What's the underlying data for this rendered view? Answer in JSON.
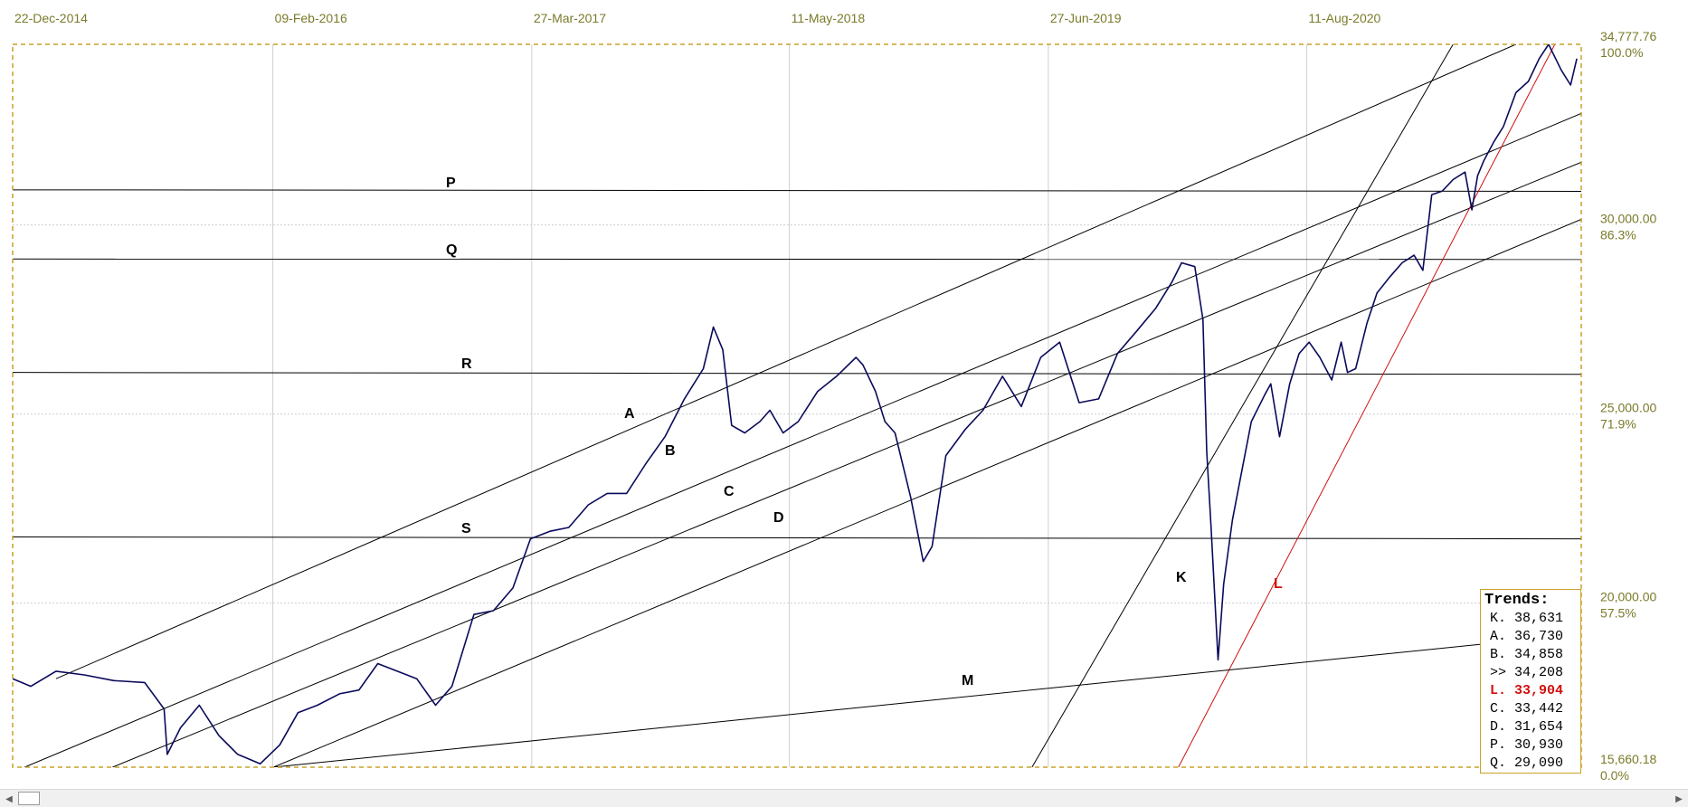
{
  "chart_data": {
    "type": "line",
    "title": "",
    "x_tick_labels": [
      "22-Dec-2014",
      "09-Feb-2016",
      "27-Mar-2017",
      "11-May-2018",
      "27-Jun-2019",
      "11-Aug-2020"
    ],
    "y_tick_labels": [
      {
        "value": "34,777.76",
        "pct": "100.0%"
      },
      {
        "value": "30,000.00",
        "pct": "86.3%"
      },
      {
        "value": "25,000.00",
        "pct": "71.9%"
      },
      {
        "value": "20,000.00",
        "pct": "57.5%"
      },
      {
        "value": "15,660.18",
        "pct": "0.0%"
      }
    ],
    "xlim": [
      "2014-12-22",
      "2021-10-22"
    ],
    "ylim": [
      15660.18,
      34777.76
    ],
    "grid": true,
    "colors": {
      "price": "#0a0a5a",
      "grid": "#cfcfcf",
      "frame": "#c9a227",
      "trend": "#000000",
      "trend_L": "#d01010"
    },
    "series": [
      {
        "x": [
          "2014-12-22",
          "2015-01-20",
          "2015-03-01",
          "2015-04-15",
          "2015-06-01",
          "2015-07-20",
          "2015-08-20",
          "2015-08-25",
          "2015-09-15",
          "2015-10-15",
          "2015-11-15",
          "2015-12-15",
          "2016-01-20",
          "2016-02-20",
          "2016-03-20",
          "2016-04-20",
          "2016-05-25",
          "2016-06-25",
          "2016-07-25",
          "2016-08-25",
          "2016-09-25",
          "2016-10-25",
          "2016-11-20",
          "2016-12-25",
          "2017-01-25",
          "2017-02-25",
          "2017-03-25",
          "2017-04-25",
          "2017-05-25",
          "2017-06-25",
          "2017-07-25",
          "2017-08-25",
          "2017-09-25",
          "2017-10-25",
          "2017-11-25",
          "2017-12-25",
          "2018-01-10",
          "2018-01-25",
          "2018-02-08",
          "2018-03-01",
          "2018-03-25",
          "2018-04-10",
          "2018-05-01",
          "2018-05-25",
          "2018-06-25",
          "2018-07-25",
          "2018-08-25",
          "2018-09-05",
          "2018-09-25",
          "2018-10-10",
          "2018-10-26",
          "2018-11-20",
          "2018-12-10",
          "2018-12-24",
          "2019-01-15",
          "2019-02-15",
          "2019-03-15",
          "2019-04-15",
          "2019-05-15",
          "2019-06-15",
          "2019-07-15",
          "2019-08-15",
          "2019-09-15",
          "2019-10-15",
          "2019-11-15",
          "2019-12-15",
          "2020-01-10",
          "2020-01-25",
          "2020-02-15",
          "2020-02-28",
          "2020-03-05",
          "2020-03-12",
          "2020-03-23",
          "2020-04-01",
          "2020-04-15",
          "2020-05-01",
          "2020-05-15",
          "2020-06-05",
          "2020-06-15",
          "2020-06-29",
          "2020-07-15",
          "2020-07-30",
          "2020-08-15",
          "2020-09-01",
          "2020-09-20",
          "2020-10-05",
          "2020-10-15",
          "2020-10-28",
          "2020-11-15",
          "2020-12-01",
          "2020-12-20",
          "2021-01-10",
          "2021-01-29",
          "2021-02-12",
          "2021-02-26",
          "2021-03-15",
          "2021-04-01",
          "2021-04-20",
          "2021-05-01",
          "2021-05-10",
          "2021-05-20",
          "2021-06-05",
          "2021-06-20",
          "2021-07-10",
          "2021-07-30",
          "2021-08-16",
          "2021-08-31",
          "2021-09-20",
          "2021-10-05",
          "2021-10-15"
        ],
        "y": [
          18000,
          17800,
          18200,
          18100,
          17950,
          17900,
          17200,
          16000,
          16700,
          17300,
          16500,
          16000,
          15750,
          16250,
          17100,
          17300,
          17600,
          17700,
          18400,
          18200,
          18000,
          17300,
          17800,
          19700,
          19800,
          20400,
          21700,
          21900,
          22000,
          22600,
          22900,
          22900,
          23700,
          24400,
          25400,
          26200,
          27300,
          26700,
          24700,
          24500,
          24800,
          25100,
          24500,
          24800,
          25600,
          26000,
          26500,
          26300,
          25600,
          24800,
          24500,
          22800,
          21100,
          21500,
          23900,
          24600,
          25100,
          26000,
          25200,
          26500,
          26900,
          25300,
          25400,
          26600,
          27200,
          27800,
          28500,
          29000,
          28900,
          27500,
          24000,
          22000,
          18500,
          20500,
          22200,
          23600,
          24800,
          25500,
          25800,
          24400,
          25800,
          26600,
          26900,
          26500,
          25900,
          26900,
          26100,
          26200,
          27400,
          28200,
          28600,
          29000,
          29200,
          28800,
          30800,
          30900,
          31200,
          31400,
          30400,
          31300,
          31700,
          32200,
          32600,
          33500,
          33800,
          34400,
          34777,
          34100,
          33700,
          34400
        ]
      }
    ],
    "annotations": [
      {
        "name": "trendline-P",
        "label": "P",
        "x0": "2014-12-22",
        "y0": 30930,
        "x1": "2021-10-22",
        "y1": 30890
      },
      {
        "name": "trendline-Q",
        "label": "Q",
        "x0": "2014-12-22",
        "y0": 29100,
        "x1": "2021-10-22",
        "y1": 29090
      },
      {
        "name": "trendline-R",
        "label": "R",
        "x0": "2014-12-22",
        "y0": 26100,
        "x1": "2021-10-22",
        "y1": 26050
      },
      {
        "name": "trendline-S",
        "label": "S",
        "x0": "2014-12-22",
        "y0": 21750,
        "x1": "2021-10-22",
        "y1": 21700
      },
      {
        "name": "trendline-A",
        "label": "A",
        "x0": "2015-03-01",
        "y0": 18000,
        "x1": "2021-07-10",
        "y1": 34777
      },
      {
        "name": "trendline-B",
        "label": "B",
        "x0": "2015-01-10",
        "y0": 15660,
        "x1": "2021-10-22",
        "y1": 32950
      },
      {
        "name": "trendline-C",
        "label": "C",
        "x0": "2015-05-30",
        "y0": 15660,
        "x1": "2021-10-22",
        "y1": 31660
      },
      {
        "name": "trendline-D",
        "label": "D",
        "x0": "2016-02-10",
        "y0": 15660,
        "x1": "2021-10-22",
        "y1": 30150
      },
      {
        "name": "trendline-K",
        "label": "K",
        "x0": "2019-06-01",
        "y0": 15660,
        "x1": "2021-04-01",
        "y1": 34777
      },
      {
        "name": "trendline-L",
        "label": "L",
        "x0": "2020-01-20",
        "y0": 15660,
        "x1": "2021-09-10",
        "y1": 34777
      },
      {
        "name": "trendline-M",
        "label": "M",
        "x0": "2016-02-10",
        "y0": 15660,
        "x1": "2021-08-05",
        "y1": 19050
      }
    ],
    "legend": {
      "title": "Trends:",
      "placement": "bottom-right",
      "items": [
        {
          "key": "K.",
          "value": "38,631"
        },
        {
          "key": "A.",
          "value": "36,730"
        },
        {
          "key": "B.",
          "value": "34,858"
        },
        {
          "key": ">>",
          "value": "34,208"
        },
        {
          "key": "L.",
          "value": "33,904",
          "color": "#d01010"
        },
        {
          "key": "C.",
          "value": "33,442"
        },
        {
          "key": "D.",
          "value": "31,654"
        },
        {
          "key": "P.",
          "value": "30,930"
        },
        {
          "key": "Q.",
          "value": "29,090"
        }
      ]
    }
  }
}
